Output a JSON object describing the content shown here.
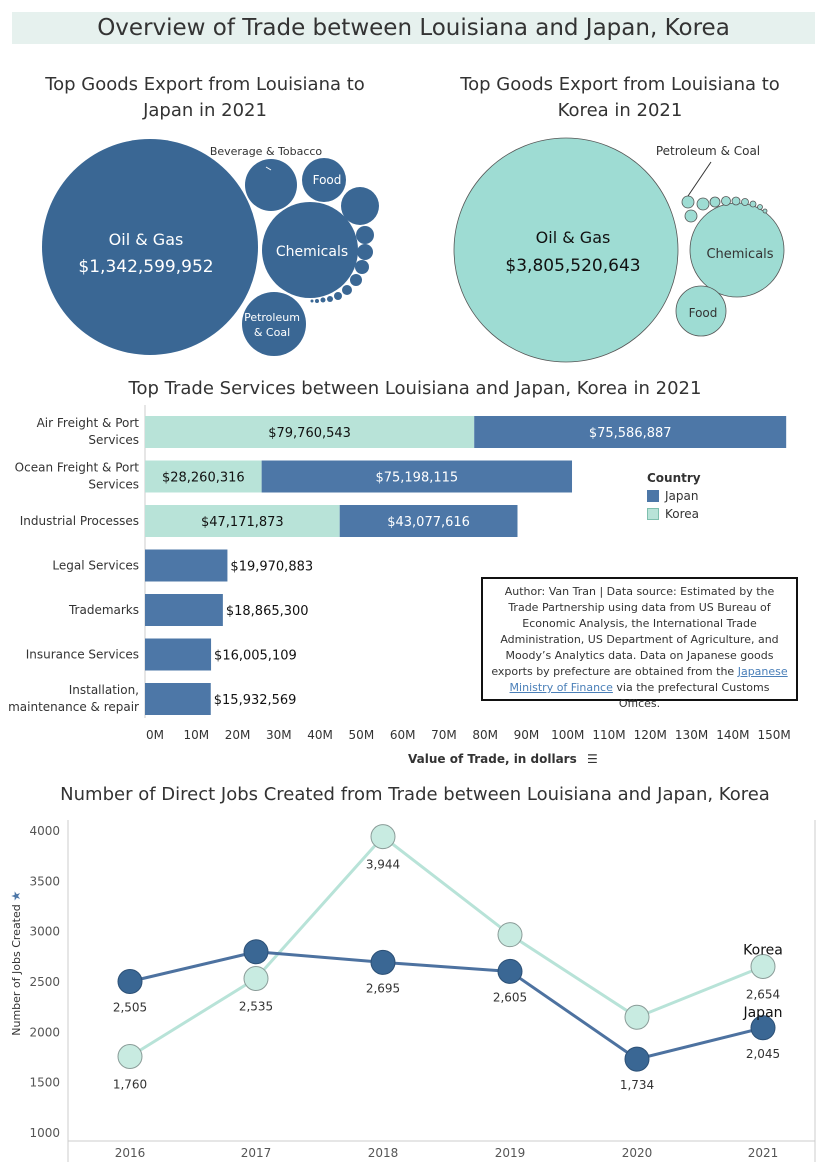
{
  "page_title": "Overview of Trade between Louisiana and Japan, Korea",
  "colors": {
    "japan": "#3a6794",
    "korea": "#9edcd3",
    "japan_bar": "#4d77a7",
    "korea_bar": "#b8e3d8"
  },
  "chart_data": [
    {
      "type": "bubble",
      "title": "Top Goods Export from Louisiana to Japan in 2021",
      "bubbles": [
        {
          "label": "Oil & Gas",
          "value_label": "$1,342,599,952"
        },
        {
          "label": "Chemicals"
        },
        {
          "label": "Petroleum & Coal"
        },
        {
          "label": "Food"
        },
        {
          "label": "Beverage & Tobacco"
        }
      ]
    },
    {
      "type": "bubble",
      "title": "Top Goods Export from Louisiana to Korea in 2021",
      "bubbles": [
        {
          "label": "Oil & Gas",
          "value_label": "$3,805,520,643"
        },
        {
          "label": "Chemicals"
        },
        {
          "label": "Food"
        },
        {
          "label": "Petroleum & Coal"
        }
      ]
    },
    {
      "type": "bar",
      "title": "Top Trade Services between Louisiana and Japan, Korea in 2021",
      "xlabel": "Value of Trade, in dollars",
      "xlim": [
        0,
        160000000
      ],
      "xticks": [
        "0M",
        "10M",
        "20M",
        "30M",
        "40M",
        "50M",
        "60M",
        "70M",
        "80M",
        "90M",
        "100M",
        "110M",
        "120M",
        "130M",
        "140M",
        "150M"
      ],
      "legend_title": "Country",
      "series_names": [
        "Japan",
        "Korea"
      ],
      "rows": [
        {
          "category": [
            "Air Freight & Port",
            "Services"
          ],
          "korea": 79760543,
          "japan": 75586887,
          "korea_label": "$79,760,543",
          "japan_label": "$75,586,887"
        },
        {
          "category": [
            "Ocean Freight & Port",
            "Services"
          ],
          "korea": 28260316,
          "japan": 75198115,
          "korea_label": "$28,260,316",
          "japan_label": "$75,198,115"
        },
        {
          "category": [
            "Industrial Processes"
          ],
          "korea": 47171873,
          "japan": 43077616,
          "korea_label": "$47,171,873",
          "japan_label": "$43,077,616"
        },
        {
          "category": [
            "Legal Services"
          ],
          "korea": 0,
          "japan": 19970883,
          "japan_label": "$19,970,883"
        },
        {
          "category": [
            "Trademarks"
          ],
          "korea": 0,
          "japan": 18865300,
          "japan_label": "$18,865,300"
        },
        {
          "category": [
            "Insurance Services"
          ],
          "korea": 0,
          "japan": 16005109,
          "japan_label": "$16,005,109"
        },
        {
          "category": [
            "Installation,",
            "maintenance & repair"
          ],
          "korea": 0,
          "japan": 15932569,
          "japan_label": "$15,932,569"
        }
      ]
    },
    {
      "type": "line",
      "title": "Number of Direct Jobs Created from Trade between Louisiana and Japan, Korea",
      "ylabel": "Number of Jobs Created",
      "ylim": [
        1000,
        4000
      ],
      "yticks": [
        1000,
        1500,
        2000,
        2500,
        3000,
        3500,
        4000
      ],
      "x": [
        "2016",
        "2017",
        "2018",
        "2019",
        "2020",
        "2021"
      ],
      "series": [
        {
          "name": "Japan",
          "values": [
            2505,
            2800,
            2695,
            2605,
            1734,
            2045
          ],
          "labels": [
            "2,505",
            "",
            "2,695",
            "2,605",
            "1,734",
            "2,045"
          ]
        },
        {
          "name": "Korea",
          "values": [
            1760,
            2535,
            3944,
            2970,
            2150,
            2654
          ],
          "labels": [
            "1,760",
            "2,535",
            "3,944",
            "",
            "",
            "2,654"
          ]
        }
      ]
    }
  ],
  "note": {
    "text_before": "Author: Van Tran | Data source: Estimated by the Trade Partnership using data from US Bureau of Economic Analysis, the International Trade Administration, US Department of Agriculture, and Moody’s Analytics data. Data on Japanese goods exports by prefecture are obtained from the ",
    "link": "Japanese Ministry of Finance",
    "text_after": " via the prefectural Customs Offices."
  }
}
